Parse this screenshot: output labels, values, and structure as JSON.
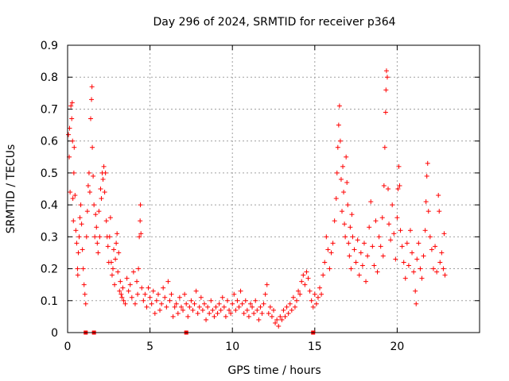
{
  "chart_data": {
    "type": "scatter",
    "title": "Day 296 of 2024, SRMTID for receiver p364",
    "xlabel": "GPS time / hours",
    "ylabel": "SRMTID / TECUs",
    "xlim": [
      0,
      25
    ],
    "ylim": [
      0,
      0.9
    ],
    "xticks": [
      0,
      5,
      10,
      15,
      20
    ],
    "xtick_labels": [
      "0",
      "5",
      "10",
      "15",
      "20"
    ],
    "yticks": [
      0,
      0.1,
      0.2,
      0.3,
      0.4,
      0.5,
      0.6,
      0.7,
      0.8,
      0.9
    ],
    "ytick_labels": [
      "0",
      "0.1",
      "0.2",
      "0.3",
      "0.4",
      "0.5",
      "0.6",
      "0.7",
      "0.8",
      "0.9"
    ],
    "grid": true,
    "marker": "+",
    "color": "#ff0000",
    "series": [
      {
        "name": "SRMTID",
        "points": [
          [
            0.05,
            0.62
          ],
          [
            0.1,
            0.55
          ],
          [
            0.12,
            0.64
          ],
          [
            0.15,
            0.44
          ],
          [
            0.2,
            0.71
          ],
          [
            0.25,
            0.67
          ],
          [
            0.28,
            0.72
          ],
          [
            0.3,
            0.6
          ],
          [
            0.32,
            0.42
          ],
          [
            0.35,
            0.35
          ],
          [
            0.38,
            0.5
          ],
          [
            0.4,
            0.58
          ],
          [
            0.45,
            0.43
          ],
          [
            0.5,
            0.32
          ],
          [
            0.55,
            0.28
          ],
          [
            0.6,
            0.2
          ],
          [
            0.62,
            0.18
          ],
          [
            0.65,
            0.25
          ],
          [
            0.7,
            0.3
          ],
          [
            0.75,
            0.36
          ],
          [
            0.8,
            0.4
          ],
          [
            0.85,
            0.34
          ],
          [
            0.9,
            0.26
          ],
          [
            0.95,
            0.2
          ],
          [
            1.0,
            0.15
          ],
          [
            1.05,
            0.12
          ],
          [
            1.1,
            0.09
          ],
          [
            1.15,
            0.3
          ],
          [
            1.2,
            0.38
          ],
          [
            1.25,
            0.46
          ],
          [
            1.3,
            0.5
          ],
          [
            1.35,
            0.44
          ],
          [
            1.4,
            0.67
          ],
          [
            1.45,
            0.73
          ],
          [
            1.48,
            0.77
          ],
          [
            1.5,
            0.58
          ],
          [
            1.55,
            0.49
          ],
          [
            1.6,
            0.4
          ],
          [
            1.65,
            0.3
          ],
          [
            1.7,
            0.37
          ],
          [
            1.75,
            0.33
          ],
          [
            1.8,
            0.28
          ],
          [
            1.85,
            0.25
          ],
          [
            1.9,
            0.38
          ],
          [
            1.95,
            0.3
          ],
          [
            2.0,
            0.45
          ],
          [
            2.05,
            0.42
          ],
          [
            2.1,
            0.5
          ],
          [
            2.15,
            0.48
          ],
          [
            2.2,
            0.52
          ],
          [
            2.25,
            0.44
          ],
          [
            2.3,
            0.5
          ],
          [
            2.35,
            0.35
          ],
          [
            2.4,
            0.3
          ],
          [
            2.45,
            0.27
          ],
          [
            2.5,
            0.22
          ],
          [
            2.55,
            0.3
          ],
          [
            2.6,
            0.36
          ],
          [
            2.65,
            0.22
          ],
          [
            2.7,
            0.18
          ],
          [
            2.75,
            0.2
          ],
          [
            2.8,
            0.26
          ],
          [
            2.85,
            0.15
          ],
          [
            2.9,
            0.23
          ],
          [
            2.95,
            0.28
          ],
          [
            3.0,
            0.31
          ],
          [
            3.05,
            0.19
          ],
          [
            3.1,
            0.25
          ],
          [
            3.15,
            0.13
          ],
          [
            3.2,
            0.16
          ],
          [
            3.25,
            0.12
          ],
          [
            3.3,
            0.11
          ],
          [
            3.35,
            0.14
          ],
          [
            3.4,
            0.1
          ],
          [
            3.5,
            0.09
          ],
          [
            3.6,
            0.17
          ],
          [
            3.7,
            0.13
          ],
          [
            3.8,
            0.15
          ],
          [
            3.9,
            0.11
          ],
          [
            4.0,
            0.19
          ],
          [
            4.1,
            0.09
          ],
          [
            4.2,
            0.16
          ],
          [
            4.25,
            0.12
          ],
          [
            4.3,
            0.2
          ],
          [
            4.35,
            0.3
          ],
          [
            4.4,
            0.35
          ],
          [
            4.42,
            0.4
          ],
          [
            4.45,
            0.31
          ],
          [
            4.5,
            0.14
          ],
          [
            4.6,
            0.1
          ],
          [
            4.7,
            0.12
          ],
          [
            4.8,
            0.08
          ],
          [
            4.9,
            0.14
          ],
          [
            5.0,
            0.11
          ],
          [
            5.1,
            0.09
          ],
          [
            5.2,
            0.13
          ],
          [
            5.3,
            0.06
          ],
          [
            5.4,
            0.1
          ],
          [
            5.5,
            0.12
          ],
          [
            5.6,
            0.07
          ],
          [
            5.7,
            0.09
          ],
          [
            5.8,
            0.14
          ],
          [
            5.9,
            0.11
          ],
          [
            6.0,
            0.08
          ],
          [
            6.1,
            0.16
          ],
          [
            6.2,
            0.1
          ],
          [
            6.3,
            0.12
          ],
          [
            6.4,
            0.05
          ],
          [
            6.5,
            0.08
          ],
          [
            6.6,
            0.09
          ],
          [
            6.7,
            0.06
          ],
          [
            6.8,
            0.11
          ],
          [
            6.9,
            0.08
          ],
          [
            7.0,
            0.07
          ],
          [
            7.1,
            0.12
          ],
          [
            7.2,
            0.09
          ],
          [
            7.3,
            0.05
          ],
          [
            7.4,
            0.08
          ],
          [
            7.5,
            0.1
          ],
          [
            7.6,
            0.07
          ],
          [
            7.7,
            0.09
          ],
          [
            7.8,
            0.13
          ],
          [
            7.9,
            0.06
          ],
          [
            8.0,
            0.08
          ],
          [
            8.1,
            0.11
          ],
          [
            8.2,
            0.07
          ],
          [
            8.3,
            0.09
          ],
          [
            8.4,
            0.04
          ],
          [
            8.5,
            0.08
          ],
          [
            8.6,
            0.06
          ],
          [
            8.7,
            0.1
          ],
          [
            8.8,
            0.07
          ],
          [
            8.9,
            0.05
          ],
          [
            9.0,
            0.08
          ],
          [
            9.1,
            0.06
          ],
          [
            9.2,
            0.09
          ],
          [
            9.3,
            0.07
          ],
          [
            9.4,
            0.11
          ],
          [
            9.5,
            0.08
          ],
          [
            9.6,
            0.05
          ],
          [
            9.7,
            0.1
          ],
          [
            9.8,
            0.07
          ],
          [
            9.9,
            0.06
          ],
          [
            10.0,
            0.09
          ],
          [
            10.1,
            0.12
          ],
          [
            10.2,
            0.07
          ],
          [
            10.3,
            0.1
          ],
          [
            10.4,
            0.08
          ],
          [
            10.5,
            0.13
          ],
          [
            10.6,
            0.09
          ],
          [
            10.7,
            0.06
          ],
          [
            10.8,
            0.1
          ],
          [
            10.9,
            0.07
          ],
          [
            11.0,
            0.05
          ],
          [
            11.1,
            0.09
          ],
          [
            11.2,
            0.08
          ],
          [
            11.3,
            0.06
          ],
          [
            11.4,
            0.1
          ],
          [
            11.5,
            0.07
          ],
          [
            11.6,
            0.04
          ],
          [
            11.7,
            0.08
          ],
          [
            11.8,
            0.06
          ],
          [
            11.9,
            0.09
          ],
          [
            12.0,
            0.12
          ],
          [
            12.1,
            0.15
          ],
          [
            12.2,
            0.06
          ],
          [
            12.3,
            0.08
          ],
          [
            12.4,
            0.05
          ],
          [
            12.5,
            0.07
          ],
          [
            12.6,
            0.03
          ],
          [
            12.7,
            0.04
          ],
          [
            12.8,
            0.02
          ],
          [
            12.9,
            0.05
          ],
          [
            13.0,
            0.04
          ],
          [
            13.1,
            0.07
          ],
          [
            13.2,
            0.05
          ],
          [
            13.3,
            0.08
          ],
          [
            13.4,
            0.06
          ],
          [
            13.5,
            0.09
          ],
          [
            13.6,
            0.07
          ],
          [
            13.7,
            0.11
          ],
          [
            13.8,
            0.08
          ],
          [
            13.9,
            0.1
          ],
          [
            14.0,
            0.13
          ],
          [
            14.1,
            0.12
          ],
          [
            14.2,
            0.16
          ],
          [
            14.3,
            0.18
          ],
          [
            14.4,
            0.15
          ],
          [
            14.5,
            0.19
          ],
          [
            14.6,
            0.17
          ],
          [
            14.7,
            0.13
          ],
          [
            14.8,
            0.1
          ],
          [
            14.9,
            0.08
          ],
          [
            15.0,
            0.12
          ],
          [
            15.1,
            0.09
          ],
          [
            15.2,
            0.11
          ],
          [
            15.3,
            0.14
          ],
          [
            15.4,
            0.12
          ],
          [
            15.5,
            0.18
          ],
          [
            15.6,
            0.22
          ],
          [
            15.7,
            0.3
          ],
          [
            15.8,
            0.26
          ],
          [
            15.9,
            0.2
          ],
          [
            16.0,
            0.25
          ],
          [
            16.1,
            0.28
          ],
          [
            16.2,
            0.35
          ],
          [
            16.3,
            0.42
          ],
          [
            16.35,
            0.5
          ],
          [
            16.4,
            0.58
          ],
          [
            16.45,
            0.65
          ],
          [
            16.5,
            0.71
          ],
          [
            16.55,
            0.6
          ],
          [
            16.6,
            0.48
          ],
          [
            16.65,
            0.38
          ],
          [
            16.7,
            0.52
          ],
          [
            16.75,
            0.44
          ],
          [
            16.8,
            0.34
          ],
          [
            16.85,
            0.3
          ],
          [
            16.9,
            0.55
          ],
          [
            16.95,
            0.47
          ],
          [
            17.0,
            0.4
          ],
          [
            17.05,
            0.28
          ],
          [
            17.1,
            0.24
          ],
          [
            17.15,
            0.33
          ],
          [
            17.2,
            0.2
          ],
          [
            17.25,
            0.37
          ],
          [
            17.3,
            0.3
          ],
          [
            17.4,
            0.26
          ],
          [
            17.5,
            0.22
          ],
          [
            17.6,
            0.29
          ],
          [
            17.7,
            0.18
          ],
          [
            17.8,
            0.25
          ],
          [
            17.9,
            0.21
          ],
          [
            18.0,
            0.28
          ],
          [
            18.1,
            0.16
          ],
          [
            18.2,
            0.24
          ],
          [
            18.3,
            0.33
          ],
          [
            18.4,
            0.41
          ],
          [
            18.5,
            0.27
          ],
          [
            18.6,
            0.21
          ],
          [
            18.7,
            0.35
          ],
          [
            18.8,
            0.19
          ],
          [
            18.9,
            0.3
          ],
          [
            19.0,
            0.27
          ],
          [
            19.1,
            0.36
          ],
          [
            19.15,
            0.24
          ],
          [
            19.2,
            0.46
          ],
          [
            19.25,
            0.58
          ],
          [
            19.3,
            0.69
          ],
          [
            19.32,
            0.76
          ],
          [
            19.35,
            0.82
          ],
          [
            19.4,
            0.8
          ],
          [
            19.45,
            0.45
          ],
          [
            19.5,
            0.34
          ],
          [
            19.6,
            0.29
          ],
          [
            19.7,
            0.4
          ],
          [
            19.8,
            0.31
          ],
          [
            19.9,
            0.23
          ],
          [
            20.0,
            0.36
          ],
          [
            20.05,
            0.45
          ],
          [
            20.1,
            0.52
          ],
          [
            20.15,
            0.46
          ],
          [
            20.2,
            0.32
          ],
          [
            20.3,
            0.27
          ],
          [
            20.4,
            0.22
          ],
          [
            20.5,
            0.17
          ],
          [
            20.6,
            0.28
          ],
          [
            20.7,
            0.21
          ],
          [
            20.8,
            0.32
          ],
          [
            20.9,
            0.25
          ],
          [
            21.0,
            0.19
          ],
          [
            21.1,
            0.13
          ],
          [
            21.15,
            0.09
          ],
          [
            21.2,
            0.23
          ],
          [
            21.3,
            0.28
          ],
          [
            21.4,
            0.2
          ],
          [
            21.5,
            0.17
          ],
          [
            21.6,
            0.24
          ],
          [
            21.7,
            0.32
          ],
          [
            21.75,
            0.41
          ],
          [
            21.8,
            0.49
          ],
          [
            21.85,
            0.53
          ],
          [
            21.9,
            0.38
          ],
          [
            22.0,
            0.3
          ],
          [
            22.1,
            0.26
          ],
          [
            22.2,
            0.2
          ],
          [
            22.3,
            0.27
          ],
          [
            22.4,
            0.19
          ],
          [
            22.5,
            0.43
          ],
          [
            22.55,
            0.38
          ],
          [
            22.6,
            0.22
          ],
          [
            22.7,
            0.25
          ],
          [
            22.8,
            0.2
          ],
          [
            22.85,
            0.31
          ],
          [
            22.9,
            0.18
          ]
        ],
        "zero_points": [
          1.1,
          1.6,
          7.2,
          14.9
        ]
      }
    ]
  }
}
